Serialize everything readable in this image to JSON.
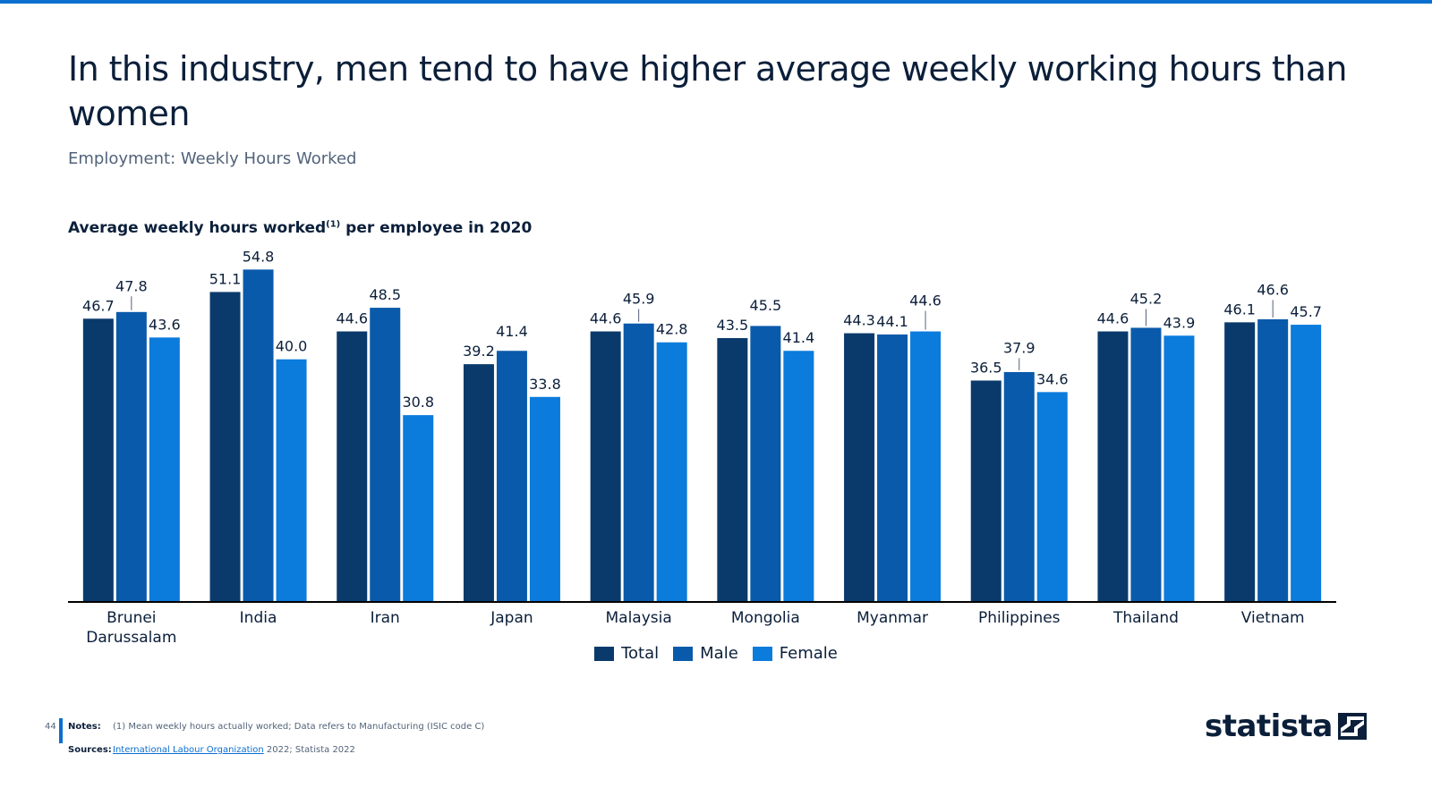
{
  "slide": {
    "title": "In this industry, men tend to have higher average weekly working hours than women",
    "subtitle": "Employment: Weekly Hours Worked",
    "chart_title_main": "Average weekly hours worked",
    "chart_title_sup": "(1)",
    "chart_title_tail": " per employee in 2020",
    "page_number": "44"
  },
  "footer": {
    "notes_label": "Notes:",
    "notes_text": "(1) Mean weekly hours actually worked; Data refers to Manufacturing (ISIC code C)",
    "sources_label": "Sources:",
    "sources_link": "International Labour Organization",
    "sources_tail": " 2022; Statista 2022",
    "logo_text": "statista"
  },
  "colors": {
    "accent": "#0b6fcf",
    "total": "#0a3a6b",
    "male": "#0a5aab",
    "female": "#0b7bdc",
    "text": "#0b1f3a"
  },
  "chart_data": {
    "type": "bar",
    "title": "Average weekly hours worked(1) per employee in 2020",
    "categories": [
      "Brunei\nDarussalam",
      "India",
      "Iran",
      "Japan",
      "Malaysia",
      "Mongolia",
      "Myanmar",
      "Philippines",
      "Thailand",
      "Vietnam"
    ],
    "series": [
      {
        "name": "Total",
        "values": [
          46.7,
          51.1,
          44.6,
          39.2,
          44.6,
          43.5,
          44.3,
          36.5,
          44.6,
          46.1
        ]
      },
      {
        "name": "Male",
        "values": [
          47.8,
          54.8,
          48.5,
          41.4,
          45.9,
          45.5,
          44.1,
          37.9,
          45.2,
          46.6
        ]
      },
      {
        "name": "Female",
        "values": [
          43.6,
          40.0,
          30.8,
          33.8,
          42.8,
          41.4,
          44.6,
          34.6,
          43.9,
          45.7
        ]
      }
    ],
    "ylim": [
      0,
      55
    ],
    "xlabel": "",
    "ylabel": "",
    "legend": "bottom-center",
    "grid": false
  }
}
